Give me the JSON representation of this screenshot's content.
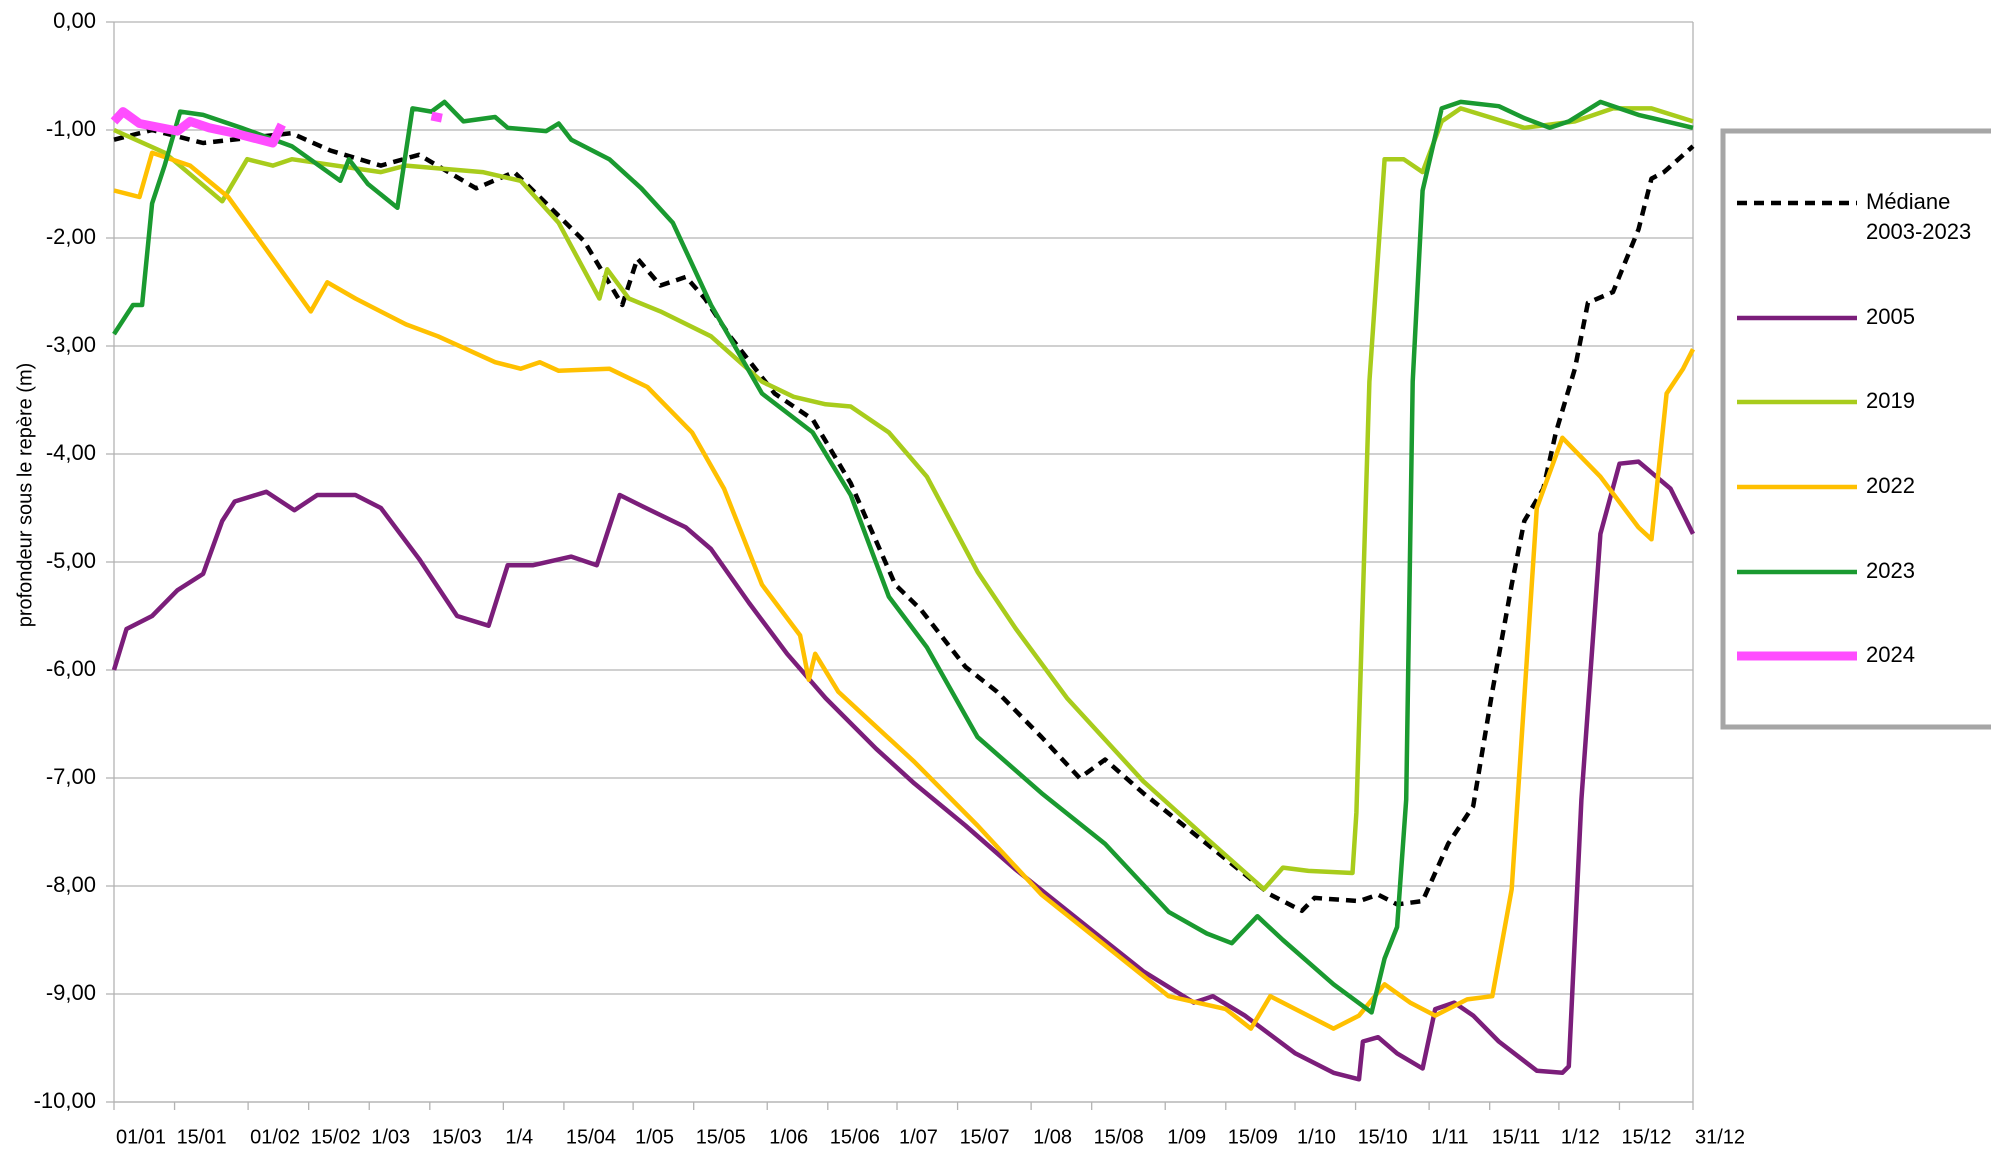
{
  "chart_data": {
    "type": "line",
    "y_label": "profondeur sous le repère (m)",
    "xlim": [
      0,
      365
    ],
    "ylim": [
      -10,
      0
    ],
    "grid": true,
    "legend": "right",
    "xticks": [
      {
        "value": 0,
        "label": "01/01"
      },
      {
        "value": 14,
        "label": "15/01"
      },
      {
        "value": 31,
        "label": "01/02"
      },
      {
        "value": 45,
        "label": "15/02"
      },
      {
        "value": 59,
        "label": "1/03"
      },
      {
        "value": 73,
        "label": "15/03"
      },
      {
        "value": 90,
        "label": "1/4"
      },
      {
        "value": 104,
        "label": "15/04"
      },
      {
        "value": 120,
        "label": "1/05"
      },
      {
        "value": 134,
        "label": "15/05"
      },
      {
        "value": 151,
        "label": "1/06"
      },
      {
        "value": 165,
        "label": "15/06"
      },
      {
        "value": 181,
        "label": "1/07"
      },
      {
        "value": 195,
        "label": "15/07"
      },
      {
        "value": 212,
        "label": "1/08"
      },
      {
        "value": 226,
        "label": "15/08"
      },
      {
        "value": 243,
        "label": "1/09"
      },
      {
        "value": 257,
        "label": "15/09"
      },
      {
        "value": 273,
        "label": "1/10"
      },
      {
        "value": 287,
        "label": "15/10"
      },
      {
        "value": 304,
        "label": "1/11"
      },
      {
        "value": 318,
        "label": "15/11"
      },
      {
        "value": 334,
        "label": "1/12"
      },
      {
        "value": 348,
        "label": "15/12"
      },
      {
        "value": 365,
        "label": "31/12"
      }
    ],
    "yticks": [
      {
        "value": 0,
        "label": "0,00"
      },
      {
        "value": -1,
        "label": "-1,00"
      },
      {
        "value": -2,
        "label": "-2,00"
      },
      {
        "value": -3,
        "label": "-3,00"
      },
      {
        "value": -4,
        "label": "-4,00"
      },
      {
        "value": -5,
        "label": "-5,00"
      },
      {
        "value": -6,
        "label": "-6,00"
      },
      {
        "value": -7,
        "label": "-7,00"
      },
      {
        "value": -8,
        "label": "-8,00"
      },
      {
        "value": -9,
        "label": "-9,00"
      },
      {
        "value": -10,
        "label": "-10,00"
      }
    ],
    "series": [
      {
        "name": "Médiane 2003-2023",
        "color": "#000000",
        "dashed": true,
        "x": [
          0,
          8.8,
          20.6,
          41,
          50,
          61.7,
          70.5,
          83.7,
          92.5,
          99.9,
          108.7,
          117.5,
          121,
          126.3,
          132.2,
          136.6,
          142.4,
          152.7,
          161.5,
          170.3,
          180.6,
          186.5,
          196.8,
          204.1,
          214.4,
          223.2,
          229.1,
          237.9,
          252.6,
          267.3,
          274.6,
          277.5,
          287.8,
          292.2,
          296.6,
          302.5,
          308.4,
          314.2,
          318.6,
          323.1,
          326,
          330.4,
          333.3,
          337.7,
          340.7,
          346.5,
          352.4,
          355.4,
          358.3,
          365
        ],
        "values": [
          -1.09,
          -1.0,
          -1.12,
          -1.03,
          -1.19,
          -1.33,
          -1.23,
          -1.54,
          -1.39,
          -1.68,
          -2.03,
          -2.62,
          -2.19,
          -2.44,
          -2.36,
          -2.56,
          -2.91,
          -3.44,
          -3.68,
          -4.27,
          -5.21,
          -5.44,
          -5.97,
          -6.2,
          -6.62,
          -7.0,
          -6.83,
          -7.14,
          -7.61,
          -8.08,
          -8.23,
          -8.11,
          -8.14,
          -8.08,
          -8.17,
          -8.14,
          -7.61,
          -7.26,
          -6.2,
          -5.21,
          -4.62,
          -4.32,
          -3.8,
          -3.21,
          -2.6,
          -2.5,
          -1.92,
          -1.45,
          -1.39,
          -1.15
        ]
      },
      {
        "name": "2005",
        "color": "#7b1e7a",
        "x": [
          0,
          2.9,
          8.8,
          14.7,
          20.6,
          25,
          27.9,
          35.2,
          41.7,
          47,
          55.8,
          61.7,
          70.5,
          79.3,
          86.6,
          91,
          96.9,
          105.7,
          111.6,
          116.9,
          121.9,
          132.2,
          138,
          146.8,
          155.6,
          164.5,
          176.2,
          185,
          196.8,
          208.5,
          223.2,
          237.9,
          249.6,
          254,
          261.4,
          273.1,
          281.9,
          287.8,
          288.7,
          292.2,
          296.6,
          302.5,
          305.4,
          309.8,
          314.2,
          320.1,
          328.9,
          334.8,
          336.3,
          339.2,
          343.6,
          348,
          352.4,
          359.8,
          365
        ],
        "values": [
          -6.0,
          -5.62,
          -5.5,
          -5.26,
          -5.11,
          -4.62,
          -4.44,
          -4.35,
          -4.52,
          -4.38,
          -4.38,
          -4.5,
          -4.97,
          -5.5,
          -5.59,
          -5.03,
          -5.03,
          -4.95,
          -5.03,
          -4.38,
          -4.48,
          -4.68,
          -4.88,
          -5.38,
          -5.85,
          -6.26,
          -6.73,
          -7.05,
          -7.44,
          -7.85,
          -8.32,
          -8.79,
          -9.08,
          -9.02,
          -9.2,
          -9.55,
          -9.73,
          -9.79,
          -9.44,
          -9.4,
          -9.55,
          -9.69,
          -9.14,
          -9.08,
          -9.2,
          -9.44,
          -9.71,
          -9.73,
          -9.67,
          -7.2,
          -4.74,
          -4.09,
          -4.07,
          -4.32,
          -4.74
        ]
      },
      {
        "name": "2019",
        "color": "#a8cc1c",
        "x": [
          0,
          11.7,
          25,
          30.8,
          36.7,
          41.1,
          61.7,
          67.5,
          85.2,
          94,
          102.8,
          112.2,
          114,
          119,
          126.3,
          138,
          149.8,
          157.1,
          164.5,
          170.3,
          179.1,
          187.9,
          199.6,
          208.5,
          220.3,
          237.9,
          252.6,
          265.8,
          270.2,
          276.1,
          286.3,
          287.2,
          290.2,
          293.7,
          298.1,
          302.5,
          306.9,
          311.3,
          326,
          337.7,
          346.5,
          355.4,
          365
        ],
        "values": [
          -1.0,
          -1.21,
          -1.66,
          -1.27,
          -1.33,
          -1.27,
          -1.39,
          -1.33,
          -1.39,
          -1.47,
          -1.86,
          -2.56,
          -2.29,
          -2.56,
          -2.68,
          -2.91,
          -3.33,
          -3.47,
          -3.54,
          -3.56,
          -3.8,
          -4.21,
          -5.09,
          -5.62,
          -6.26,
          -7.03,
          -7.56,
          -8.03,
          -7.83,
          -7.86,
          -7.88,
          -7.32,
          -3.33,
          -1.27,
          -1.27,
          -1.39,
          -0.92,
          -0.8,
          -0.98,
          -0.92,
          -0.8,
          -0.8,
          -0.92
        ]
      },
      {
        "name": "2022",
        "color": "#ffc000",
        "x": [
          0,
          5.9,
          8.8,
          17.6,
          26.4,
          33.8,
          45.5,
          49.3,
          55.8,
          67.5,
          74.9,
          88.1,
          94,
          98.4,
          102.8,
          114.5,
          123.3,
          133.6,
          141,
          149.8,
          158.6,
          160.6,
          162.1,
          167.4,
          174.7,
          185,
          199.6,
          214.4,
          229.1,
          243.8,
          257,
          262.8,
          267.3,
          273.1,
          281.9,
          287.8,
          293.7,
          299.6,
          305.4,
          312.8,
          318.6,
          323.1,
          328.9,
          334.8,
          343.6,
          352.4,
          355.4,
          358.9,
          362.7,
          365
        ],
        "values": [
          -1.56,
          -1.62,
          -1.21,
          -1.33,
          -1.62,
          -2.03,
          -2.68,
          -2.41,
          -2.56,
          -2.8,
          -2.91,
          -3.15,
          -3.21,
          -3.15,
          -3.23,
          -3.21,
          -3.38,
          -3.8,
          -4.32,
          -5.21,
          -5.68,
          -6.09,
          -5.85,
          -6.2,
          -6.47,
          -6.85,
          -7.44,
          -8.08,
          -8.55,
          -9.02,
          -9.14,
          -9.32,
          -9.02,
          -9.14,
          -9.32,
          -9.2,
          -8.91,
          -9.08,
          -9.2,
          -9.05,
          -9.02,
          -8.03,
          -4.5,
          -3.85,
          -4.21,
          -4.68,
          -4.79,
          -3.44,
          -3.21,
          -3.03
        ]
      },
      {
        "name": "2023",
        "color": "#1a9a30",
        "x": [
          0,
          4.4,
          6.5,
          8.8,
          11.7,
          15.3,
          20.6,
          29.4,
          41.1,
          52.3,
          54.3,
          58.7,
          65.5,
          69,
          73.4,
          76.4,
          80.8,
          88.1,
          91,
          99.9,
          102.8,
          105.7,
          114.5,
          121.9,
          129.2,
          138,
          149.8,
          161.5,
          170.3,
          179.1,
          187.9,
          199.6,
          214.4,
          229.1,
          243.8,
          252.6,
          258.4,
          264.3,
          270.2,
          281.9,
          290.7,
          293.7,
          296.6,
          298.7,
          300.2,
          302.5,
          306.9,
          311.3,
          320.1,
          326,
          331.9,
          336.3,
          343.6,
          352.4,
          365
        ],
        "values": [
          -2.89,
          -2.62,
          -2.62,
          -1.68,
          -1.33,
          -0.83,
          -0.86,
          -0.98,
          -1.15,
          -1.47,
          -1.27,
          -1.5,
          -1.72,
          -0.8,
          -0.83,
          -0.74,
          -0.92,
          -0.88,
          -0.98,
          -1.01,
          -0.94,
          -1.09,
          -1.27,
          -1.54,
          -1.86,
          -2.62,
          -3.44,
          -3.8,
          -4.38,
          -5.32,
          -5.79,
          -6.62,
          -7.14,
          -7.61,
          -8.24,
          -8.44,
          -8.53,
          -8.28,
          -8.5,
          -8.91,
          -9.17,
          -8.67,
          -8.38,
          -7.2,
          -3.33,
          -1.56,
          -0.8,
          -0.74,
          -0.78,
          -0.89,
          -0.98,
          -0.92,
          -0.74,
          -0.86,
          -0.98
        ]
      },
      {
        "name": "2024",
        "color": "#ff4dff",
        "thick": true,
        "x": [
          0,
          2.1,
          5.9,
          14.7,
          17.6,
          22,
          27.9,
          36.7,
          38.8,
          56,
          73.4,
          75.8
        ],
        "values": [
          -0.92,
          -0.83,
          -0.94,
          -1.01,
          -0.92,
          -0.98,
          -1.03,
          -1.12,
          -0.95,
          null,
          -0.87,
          -0.89
        ]
      }
    ]
  }
}
